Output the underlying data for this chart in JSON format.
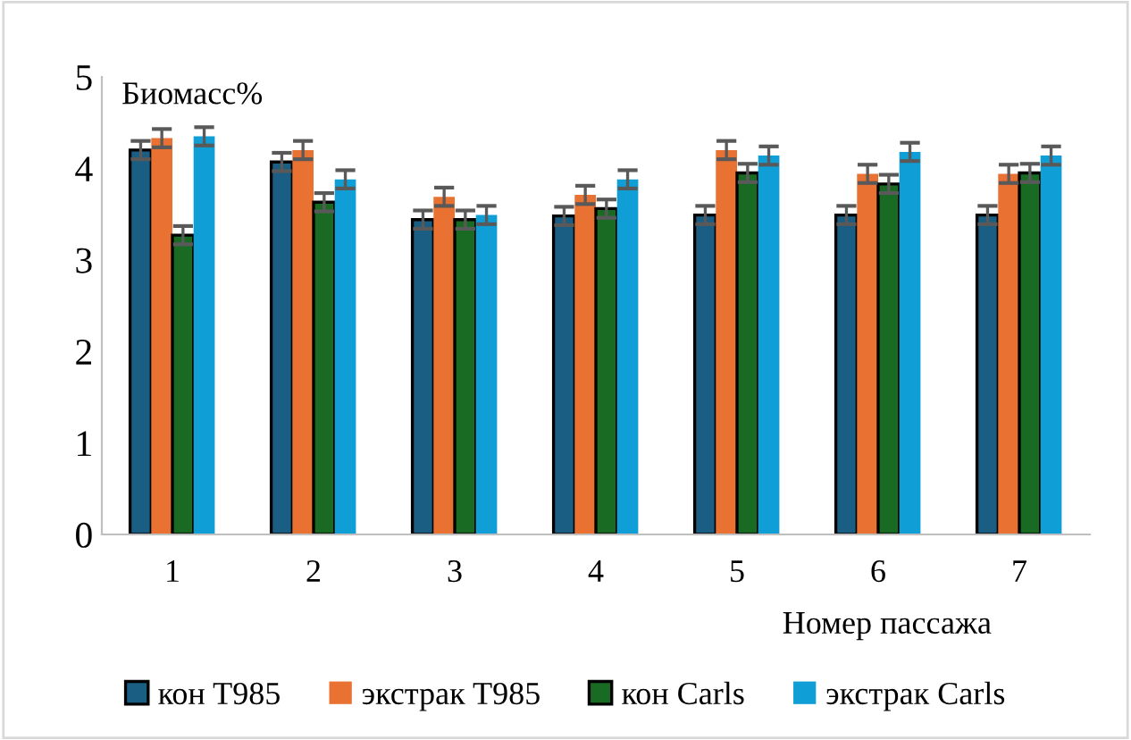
{
  "chart_data": {
    "type": "bar",
    "ylabel": "Биомасс%",
    "xlabel": "Номер пассажа",
    "categories": [
      "1",
      "2",
      "3",
      "4",
      "5",
      "6",
      "7"
    ],
    "series": [
      {
        "name": "кон T985",
        "color": "#1a5e84",
        "values": [
          4.2,
          4.07,
          3.44,
          3.48,
          3.49,
          3.49,
          3.49
        ],
        "errors": [
          0.1,
          0.1,
          0.1,
          0.1,
          0.1,
          0.1,
          0.1
        ]
      },
      {
        "name": "экстрак T985",
        "color": "#e97132",
        "values": [
          4.33,
          4.2,
          3.69,
          3.71,
          4.2,
          3.94,
          3.94
        ],
        "errors": [
          0.1,
          0.1,
          0.1,
          0.1,
          0.1,
          0.1,
          0.1
        ]
      },
      {
        "name": "кон Carls",
        "color": "#196b24",
        "values": [
          3.27,
          3.63,
          3.44,
          3.56,
          3.95,
          3.83,
          3.95
        ],
        "errors": [
          0.1,
          0.1,
          0.1,
          0.1,
          0.1,
          0.1,
          0.1
        ]
      },
      {
        "name": "экстрак Carls",
        "color": "#0f9ed5",
        "values": [
          4.35,
          3.88,
          3.49,
          3.88,
          4.14,
          4.18,
          4.14
        ],
        "errors": [
          0.1,
          0.1,
          0.1,
          0.1,
          0.1,
          0.1,
          0.1
        ]
      }
    ],
    "ylim": [
      0,
      5
    ],
    "yticks": [
      0,
      1,
      2,
      3,
      4,
      5
    ],
    "grid": false,
    "legend": "bottom"
  }
}
